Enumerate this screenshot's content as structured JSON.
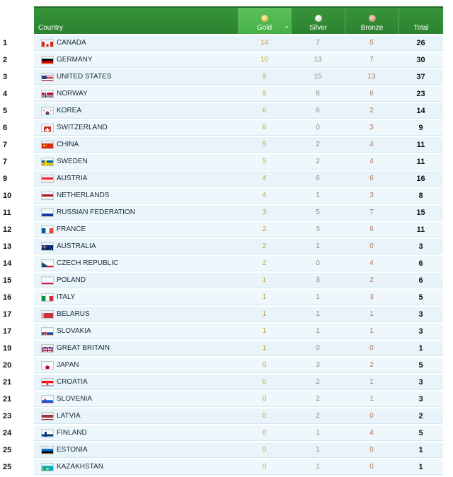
{
  "header": {
    "country_label": "Country",
    "gold_label": "Gold",
    "silver_label": "Silver",
    "bronze_label": "Bronze",
    "total_label": "Total",
    "sort_indicator": "^"
  },
  "colors": {
    "header_green": "#2c822f",
    "gold_column": "#46b047",
    "row_bg": "#e8f4fa",
    "gold_text": "#c8a222",
    "bronze_text": "#b07a5d"
  },
  "rows": [
    {
      "rank": "1",
      "country": "CANADA",
      "flag": "canada-flag",
      "gold": "14",
      "silver": "7",
      "bronze": "5",
      "total": "26"
    },
    {
      "rank": "2",
      "country": "GERMANY",
      "flag": "germany-flag",
      "gold": "10",
      "silver": "13",
      "bronze": "7",
      "total": "30"
    },
    {
      "rank": "3",
      "country": "UNITED STATES",
      "flag": "usa-flag",
      "gold": "9",
      "silver": "15",
      "bronze": "13",
      "total": "37"
    },
    {
      "rank": "4",
      "country": "NORWAY",
      "flag": "norway-flag",
      "gold": "9",
      "silver": "8",
      "bronze": "6",
      "total": "23"
    },
    {
      "rank": "5",
      "country": "KOREA",
      "flag": "korea-flag",
      "gold": "6",
      "silver": "6",
      "bronze": "2",
      "total": "14"
    },
    {
      "rank": "6",
      "country": "SWITZERLAND",
      "flag": "switzerland-flag",
      "gold": "6",
      "silver": "0",
      "bronze": "3",
      "total": "9"
    },
    {
      "rank": "7",
      "country": "CHINA",
      "flag": "china-flag",
      "gold": "5",
      "silver": "2",
      "bronze": "4",
      "total": "11"
    },
    {
      "rank": "7",
      "country": "SWEDEN",
      "flag": "sweden-flag",
      "gold": "5",
      "silver": "2",
      "bronze": "4",
      "total": "11"
    },
    {
      "rank": "9",
      "country": "AUSTRIA",
      "flag": "austria-flag",
      "gold": "4",
      "silver": "6",
      "bronze": "6",
      "total": "16"
    },
    {
      "rank": "10",
      "country": "NETHERLANDS",
      "flag": "netherlands-flag",
      "gold": "4",
      "silver": "1",
      "bronze": "3",
      "total": "8"
    },
    {
      "rank": "11",
      "country": "RUSSIAN FEDERATION",
      "flag": "russia-flag",
      "gold": "3",
      "silver": "5",
      "bronze": "7",
      "total": "15"
    },
    {
      "rank": "12",
      "country": "FRANCE",
      "flag": "france-flag",
      "gold": "2",
      "silver": "3",
      "bronze": "6",
      "total": "11"
    },
    {
      "rank": "13",
      "country": "AUSTRALIA",
      "flag": "australia-flag",
      "gold": "2",
      "silver": "1",
      "bronze": "0",
      "total": "3"
    },
    {
      "rank": "14",
      "country": "CZECH REPUBLIC",
      "flag": "czech-flag",
      "gold": "2",
      "silver": "0",
      "bronze": "4",
      "total": "6"
    },
    {
      "rank": "15",
      "country": "POLAND",
      "flag": "poland-flag",
      "gold": "1",
      "silver": "3",
      "bronze": "2",
      "total": "6"
    },
    {
      "rank": "16",
      "country": "ITALY",
      "flag": "italy-flag",
      "gold": "1",
      "silver": "1",
      "bronze": "3",
      "total": "5"
    },
    {
      "rank": "17",
      "country": "BELARUS",
      "flag": "belarus-flag",
      "gold": "1",
      "silver": "1",
      "bronze": "1",
      "total": "3"
    },
    {
      "rank": "17",
      "country": "SLOVAKIA",
      "flag": "slovakia-flag",
      "gold": "1",
      "silver": "1",
      "bronze": "1",
      "total": "3"
    },
    {
      "rank": "19",
      "country": "GREAT BRITAIN",
      "flag": "great-britain-flag",
      "gold": "1",
      "silver": "0",
      "bronze": "0",
      "total": "1"
    },
    {
      "rank": "20",
      "country": "JAPAN",
      "flag": "japan-flag",
      "gold": "0",
      "silver": "3",
      "bronze": "2",
      "total": "5"
    },
    {
      "rank": "21",
      "country": "CROATIA",
      "flag": "croatia-flag",
      "gold": "0",
      "silver": "2",
      "bronze": "1",
      "total": "3"
    },
    {
      "rank": "21",
      "country": "SLOVENIA",
      "flag": "slovenia-flag",
      "gold": "0",
      "silver": "2",
      "bronze": "1",
      "total": "3"
    },
    {
      "rank": "23",
      "country": "LATVIA",
      "flag": "latvia-flag",
      "gold": "0",
      "silver": "2",
      "bronze": "0",
      "total": "2"
    },
    {
      "rank": "24",
      "country": "FINLAND",
      "flag": "finland-flag",
      "gold": "0",
      "silver": "1",
      "bronze": "4",
      "total": "5"
    },
    {
      "rank": "25",
      "country": "ESTONIA",
      "flag": "estonia-flag",
      "gold": "0",
      "silver": "1",
      "bronze": "0",
      "total": "1"
    },
    {
      "rank": "25",
      "country": "KAZAKHSTAN",
      "flag": "kazakhstan-flag",
      "gold": "0",
      "silver": "1",
      "bronze": "0",
      "total": "1"
    }
  ]
}
